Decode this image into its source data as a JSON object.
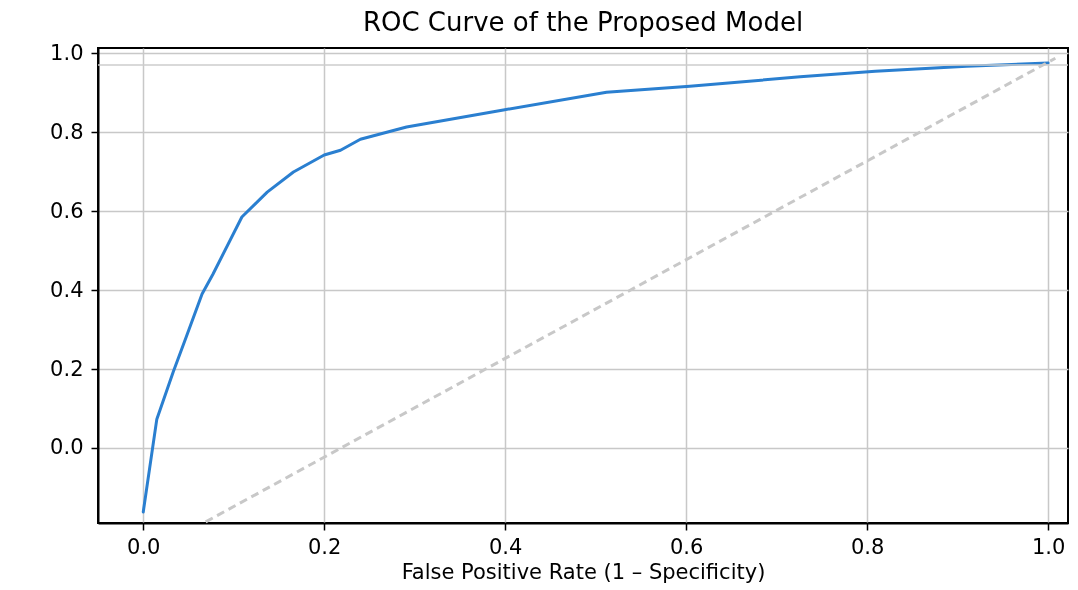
{
  "chart_data": {
    "type": "line",
    "title": "ROC Curve of the Proposed Model",
    "xlabel": "False Positive Rate (1 – Specificity)",
    "xlim": [
      -0.05,
      1.022
    ],
    "ylim": [
      -0.19,
      1.013
    ],
    "xticks": [
      {
        "value": 0,
        "label": "0.0"
      },
      {
        "value": 0.2,
        "label": "0.2"
      },
      {
        "value": 0.4,
        "label": "0.4"
      },
      {
        "value": 0.6,
        "label": "0.6"
      },
      {
        "value": 0.8,
        "label": "0.8"
      },
      {
        "value": 1,
        "label": "1.0"
      }
    ],
    "yticks": [
      {
        "value": 0,
        "label": "0.0"
      },
      {
        "value": 0.2,
        "label": "0.2"
      },
      {
        "value": 0.4,
        "label": "0.4"
      },
      {
        "value": 0.6,
        "label": "0.6"
      },
      {
        "value": 0.8,
        "label": "0.8"
      },
      {
        "value": 1,
        "label": "1.0"
      }
    ],
    "grid": true,
    "ref_lines": [
      {
        "axis": "y",
        "value": 0.97,
        "color": "#cccccc"
      }
    ],
    "series": [
      {
        "color": "#2a7fd0",
        "line_style": "solid",
        "x": [
          0,
          0.015,
          0.033,
          0.048,
          0.065,
          0.077,
          0.109,
          0.137,
          0.166,
          0.2,
          0.218,
          0.24,
          0.291,
          0.398,
          0.512,
          0.604,
          0.726,
          0.809,
          0.91,
          1.0
        ],
        "values": [
          -0.162,
          0.073,
          0.192,
          0.284,
          0.39,
          0.44,
          0.585,
          0.648,
          0.699,
          0.742,
          0.754,
          0.782,
          0.813,
          0.856,
          0.901,
          0.916,
          0.94,
          0.954,
          0.967,
          0.975
        ]
      },
      {
        "color": "#c8c8c8",
        "line_style": "dashed",
        "x": [
          0.069,
          1.008
        ],
        "values": [
          -0.187,
          0.987
        ]
      }
    ]
  }
}
